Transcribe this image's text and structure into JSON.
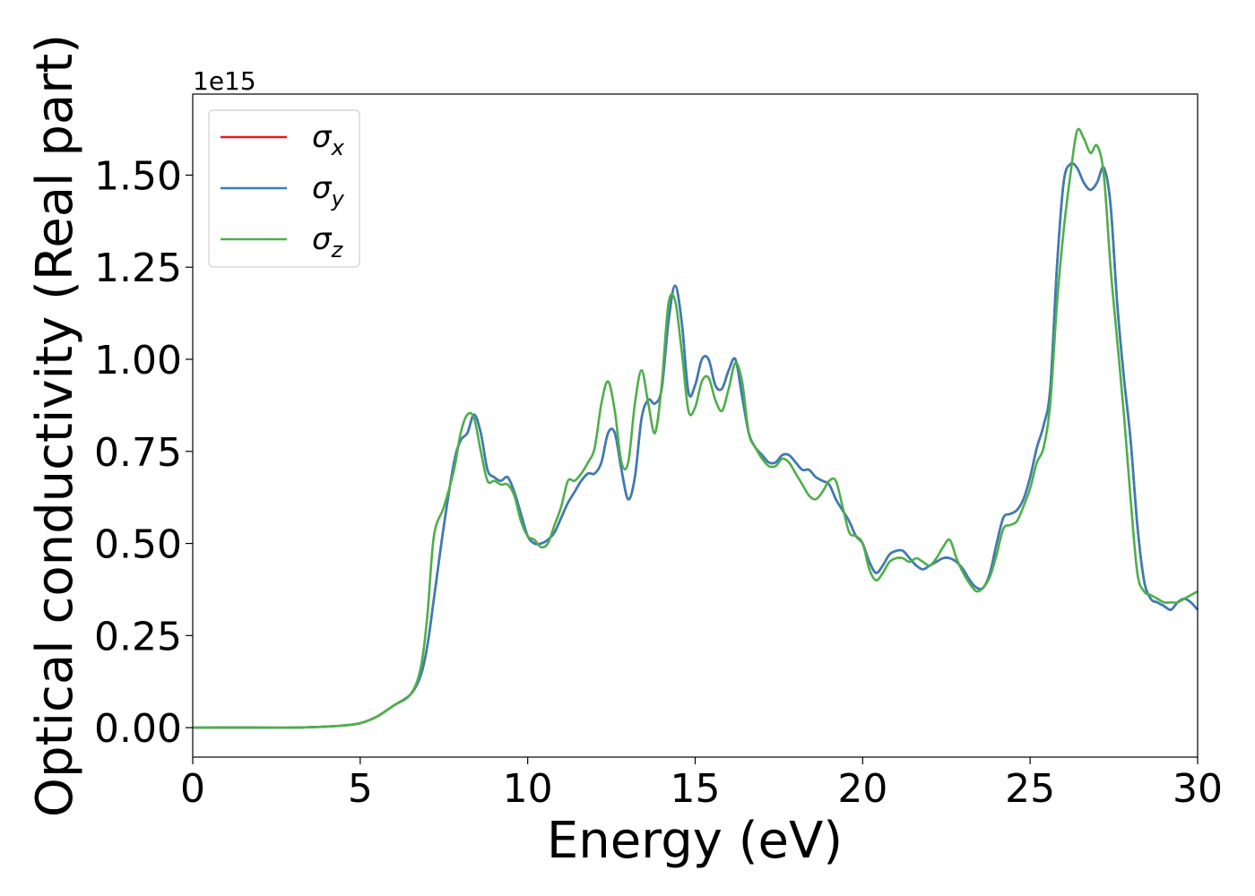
{
  "chart_data": {
    "type": "line",
    "xlabel": "Energy (eV)",
    "ylabel": "Optical conductivity (Real part)",
    "y_offset_label": "1e15",
    "xlim": [
      0,
      30
    ],
    "ylim": [
      -0.08,
      1.72
    ],
    "x_ticks": [
      0,
      5,
      10,
      15,
      20,
      25,
      30
    ],
    "x_tick_labels": [
      "0",
      "5",
      "10",
      "15",
      "20",
      "25",
      "30"
    ],
    "y_ticks": [
      0.0,
      0.25,
      0.5,
      0.75,
      1.0,
      1.25,
      1.5
    ],
    "y_tick_labels": [
      "0.00",
      "0.25",
      "0.50",
      "0.75",
      "1.00",
      "1.25",
      "1.50"
    ],
    "grid": false,
    "legend_position": "top-left",
    "series": [
      {
        "name": "σx",
        "legend_base": "σ",
        "legend_sub": "x",
        "color": "#e41a1c",
        "x": [
          0,
          1,
          2,
          3,
          4,
          4.5,
          5,
          5.5,
          6,
          6.5,
          6.8,
          7,
          7.2,
          7.5,
          7.8,
          8,
          8.2,
          8.4,
          8.6,
          8.8,
          9,
          9.2,
          9.4,
          9.6,
          9.8,
          10,
          10.2,
          10.4,
          10.6,
          10.8,
          11,
          11.2,
          11.4,
          11.6,
          11.8,
          12,
          12.2,
          12.4,
          12.6,
          12.8,
          13,
          13.2,
          13.4,
          13.6,
          13.8,
          14,
          14.2,
          14.4,
          14.6,
          14.8,
          15,
          15.2,
          15.4,
          15.6,
          15.8,
          16,
          16.2,
          16.4,
          16.6,
          16.8,
          17,
          17.2,
          17.4,
          17.6,
          17.8,
          18,
          18.2,
          18.4,
          18.6,
          18.8,
          19,
          19.2,
          19.4,
          19.6,
          19.8,
          20,
          20.2,
          20.4,
          20.6,
          20.8,
          21,
          21.2,
          21.4,
          21.6,
          21.8,
          22,
          22.2,
          22.4,
          22.6,
          22.8,
          23,
          23.2,
          23.4,
          23.6,
          23.8,
          24,
          24.2,
          24.4,
          24.6,
          24.8,
          25,
          25.2,
          25.4,
          25.6,
          25.8,
          26,
          26.2,
          26.4,
          26.6,
          26.8,
          27,
          27.2,
          27.4,
          27.6,
          27.8,
          28,
          28.2,
          28.4,
          28.6,
          28.8,
          29,
          29.2,
          29.4,
          29.6,
          29.8,
          30
        ],
        "values": [
          0,
          0,
          0,
          0,
          0.003,
          0.006,
          0.012,
          0.03,
          0.06,
          0.09,
          0.14,
          0.22,
          0.35,
          0.55,
          0.72,
          0.78,
          0.8,
          0.85,
          0.8,
          0.7,
          0.68,
          0.67,
          0.68,
          0.64,
          0.58,
          0.52,
          0.5,
          0.5,
          0.51,
          0.53,
          0.57,
          0.61,
          0.64,
          0.67,
          0.69,
          0.69,
          0.72,
          0.8,
          0.8,
          0.7,
          0.62,
          0.68,
          0.84,
          0.89,
          0.88,
          0.92,
          1.1,
          1.2,
          1.1,
          0.91,
          0.93,
          1.0,
          1.0,
          0.93,
          0.92,
          0.97,
          1.0,
          0.9,
          0.8,
          0.76,
          0.74,
          0.72,
          0.72,
          0.74,
          0.74,
          0.72,
          0.7,
          0.7,
          0.68,
          0.67,
          0.66,
          0.62,
          0.59,
          0.56,
          0.52,
          0.5,
          0.45,
          0.42,
          0.44,
          0.47,
          0.48,
          0.48,
          0.46,
          0.44,
          0.43,
          0.44,
          0.45,
          0.46,
          0.46,
          0.45,
          0.43,
          0.4,
          0.38,
          0.38,
          0.42,
          0.5,
          0.57,
          0.58,
          0.59,
          0.62,
          0.68,
          0.76,
          0.82,
          0.92,
          1.25,
          1.48,
          1.53,
          1.52,
          1.48,
          1.46,
          1.48,
          1.52,
          1.42,
          1.15,
          0.95,
          0.78,
          0.55,
          0.4,
          0.35,
          0.34,
          0.33,
          0.32,
          0.34,
          0.35,
          0.34,
          0.32
        ]
      },
      {
        "name": "σy",
        "legend_base": "σ",
        "legend_sub": "y",
        "color": "#377eb8",
        "x": [
          0,
          1,
          2,
          3,
          4,
          4.5,
          5,
          5.5,
          6,
          6.5,
          6.8,
          7,
          7.2,
          7.5,
          7.8,
          8,
          8.2,
          8.4,
          8.6,
          8.8,
          9,
          9.2,
          9.4,
          9.6,
          9.8,
          10,
          10.2,
          10.4,
          10.6,
          10.8,
          11,
          11.2,
          11.4,
          11.6,
          11.8,
          12,
          12.2,
          12.4,
          12.6,
          12.8,
          13,
          13.2,
          13.4,
          13.6,
          13.8,
          14,
          14.2,
          14.4,
          14.6,
          14.8,
          15,
          15.2,
          15.4,
          15.6,
          15.8,
          16,
          16.2,
          16.4,
          16.6,
          16.8,
          17,
          17.2,
          17.4,
          17.6,
          17.8,
          18,
          18.2,
          18.4,
          18.6,
          18.8,
          19,
          19.2,
          19.4,
          19.6,
          19.8,
          20,
          20.2,
          20.4,
          20.6,
          20.8,
          21,
          21.2,
          21.4,
          21.6,
          21.8,
          22,
          22.2,
          22.4,
          22.6,
          22.8,
          23,
          23.2,
          23.4,
          23.6,
          23.8,
          24,
          24.2,
          24.4,
          24.6,
          24.8,
          25,
          25.2,
          25.4,
          25.6,
          25.8,
          26,
          26.2,
          26.4,
          26.6,
          26.8,
          27,
          27.2,
          27.4,
          27.6,
          27.8,
          28,
          28.2,
          28.4,
          28.6,
          28.8,
          29,
          29.2,
          29.4,
          29.6,
          29.8,
          30
        ],
        "values": [
          0,
          0,
          0,
          0,
          0.003,
          0.006,
          0.012,
          0.03,
          0.06,
          0.09,
          0.14,
          0.22,
          0.35,
          0.55,
          0.72,
          0.78,
          0.8,
          0.85,
          0.8,
          0.7,
          0.68,
          0.67,
          0.68,
          0.64,
          0.58,
          0.52,
          0.5,
          0.5,
          0.51,
          0.53,
          0.57,
          0.61,
          0.64,
          0.67,
          0.69,
          0.69,
          0.72,
          0.8,
          0.8,
          0.7,
          0.62,
          0.68,
          0.84,
          0.89,
          0.88,
          0.92,
          1.1,
          1.2,
          1.1,
          0.91,
          0.93,
          1.0,
          1.0,
          0.93,
          0.92,
          0.97,
          1.0,
          0.9,
          0.8,
          0.76,
          0.74,
          0.72,
          0.72,
          0.74,
          0.74,
          0.72,
          0.7,
          0.7,
          0.68,
          0.67,
          0.66,
          0.62,
          0.59,
          0.56,
          0.52,
          0.5,
          0.45,
          0.42,
          0.44,
          0.47,
          0.48,
          0.48,
          0.46,
          0.44,
          0.43,
          0.44,
          0.45,
          0.46,
          0.46,
          0.45,
          0.43,
          0.4,
          0.38,
          0.38,
          0.42,
          0.5,
          0.57,
          0.58,
          0.59,
          0.62,
          0.68,
          0.76,
          0.82,
          0.92,
          1.25,
          1.48,
          1.53,
          1.52,
          1.48,
          1.46,
          1.48,
          1.52,
          1.42,
          1.15,
          0.95,
          0.78,
          0.55,
          0.4,
          0.35,
          0.34,
          0.33,
          0.32,
          0.34,
          0.35,
          0.34,
          0.32
        ]
      },
      {
        "name": "σz",
        "legend_base": "σ",
        "legend_sub": "z",
        "color": "#4daf4a",
        "x": [
          0,
          1,
          2,
          3,
          4,
          4.5,
          5,
          5.5,
          6,
          6.5,
          6.8,
          7,
          7.2,
          7.5,
          7.8,
          8,
          8.2,
          8.4,
          8.6,
          8.8,
          9,
          9.2,
          9.4,
          9.6,
          9.8,
          10,
          10.2,
          10.4,
          10.6,
          10.8,
          11,
          11.2,
          11.4,
          11.6,
          11.8,
          12,
          12.2,
          12.4,
          12.6,
          12.8,
          13,
          13.2,
          13.4,
          13.6,
          13.8,
          14,
          14.2,
          14.4,
          14.6,
          14.8,
          15,
          15.2,
          15.4,
          15.6,
          15.8,
          16,
          16.2,
          16.4,
          16.6,
          16.8,
          17,
          17.2,
          17.4,
          17.6,
          17.8,
          18,
          18.2,
          18.4,
          18.6,
          18.8,
          19,
          19.2,
          19.4,
          19.6,
          19.8,
          20,
          20.2,
          20.4,
          20.6,
          20.8,
          21,
          21.2,
          21.4,
          21.6,
          21.8,
          22,
          22.2,
          22.4,
          22.6,
          22.8,
          23,
          23.2,
          23.4,
          23.6,
          23.8,
          24,
          24.2,
          24.4,
          24.6,
          24.8,
          25,
          25.2,
          25.4,
          25.6,
          25.8,
          26,
          26.2,
          26.4,
          26.6,
          26.8,
          27,
          27.2,
          27.4,
          27.6,
          27.8,
          28,
          28.2,
          28.4,
          28.6,
          28.8,
          29,
          29.2,
          29.4,
          29.6,
          29.8,
          30
        ],
        "values": [
          0,
          0,
          0,
          0,
          0.003,
          0.006,
          0.012,
          0.03,
          0.06,
          0.09,
          0.16,
          0.3,
          0.52,
          0.6,
          0.7,
          0.8,
          0.85,
          0.84,
          0.75,
          0.67,
          0.67,
          0.66,
          0.66,
          0.63,
          0.56,
          0.52,
          0.51,
          0.49,
          0.5,
          0.55,
          0.6,
          0.67,
          0.67,
          0.69,
          0.72,
          0.76,
          0.88,
          0.94,
          0.86,
          0.72,
          0.72,
          0.88,
          0.97,
          0.88,
          0.8,
          0.93,
          1.15,
          1.16,
          1.02,
          0.86,
          0.87,
          0.94,
          0.95,
          0.89,
          0.86,
          0.92,
          0.99,
          0.94,
          0.8,
          0.76,
          0.73,
          0.71,
          0.71,
          0.73,
          0.72,
          0.69,
          0.66,
          0.63,
          0.62,
          0.64,
          0.67,
          0.67,
          0.6,
          0.53,
          0.52,
          0.5,
          0.43,
          0.4,
          0.42,
          0.45,
          0.46,
          0.46,
          0.45,
          0.46,
          0.45,
          0.44,
          0.46,
          0.49,
          0.51,
          0.46,
          0.42,
          0.39,
          0.37,
          0.38,
          0.41,
          0.47,
          0.54,
          0.55,
          0.56,
          0.6,
          0.65,
          0.72,
          0.76,
          0.88,
          1.15,
          1.35,
          1.5,
          1.62,
          1.6,
          1.56,
          1.58,
          1.5,
          1.25,
          1.05,
          0.85,
          0.62,
          0.42,
          0.37,
          0.36,
          0.35,
          0.34,
          0.34,
          0.34,
          0.35,
          0.36,
          0.37
        ]
      }
    ]
  }
}
